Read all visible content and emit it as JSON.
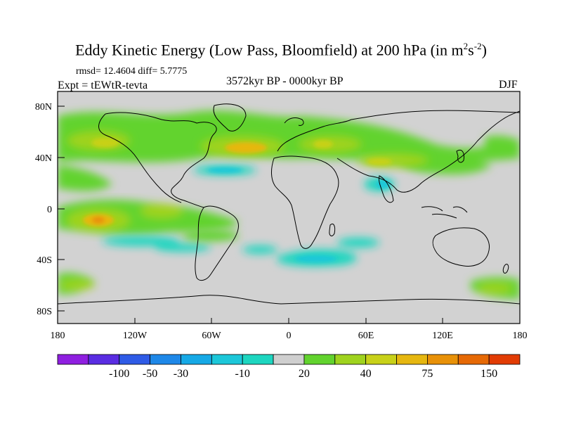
{
  "header": {
    "title": "Eddy Kinetic Energy (Low Pass, Bloomfield) at 200 hPa (in m",
    "title_unit_sup1": "2",
    "title_unit_mid": "s",
    "title_unit_sup2": "-2",
    "title_tail": ")",
    "stats": "rmsd= 12.4604 diff= 5.7775",
    "experiment": "Expt = tEWtR-tevta",
    "period": "3572kyr BP - 0000kyr BP",
    "season": "DJF"
  },
  "map": {
    "background_color": "#d2d2d2",
    "lat_labels": [
      "80N",
      "40N",
      "0",
      "40S",
      "80S"
    ],
    "lon_labels": [
      "180",
      "120W",
      "60W",
      "0",
      "60E",
      "120E",
      "180"
    ]
  },
  "colorbar": {
    "colors": [
      "#8f1fe0",
      "#5a2de2",
      "#2f5be6",
      "#1e88e8",
      "#16a9e6",
      "#1cc7d9",
      "#1dd6c0",
      "#cfcfcf",
      "#62d32e",
      "#9fd31e",
      "#c8d119",
      "#e6b710",
      "#e89108",
      "#e66905",
      "#e23c04"
    ],
    "labels": [
      "-100",
      "-50",
      "-30",
      "-10",
      "20",
      "40",
      "75",
      "150"
    ]
  }
}
